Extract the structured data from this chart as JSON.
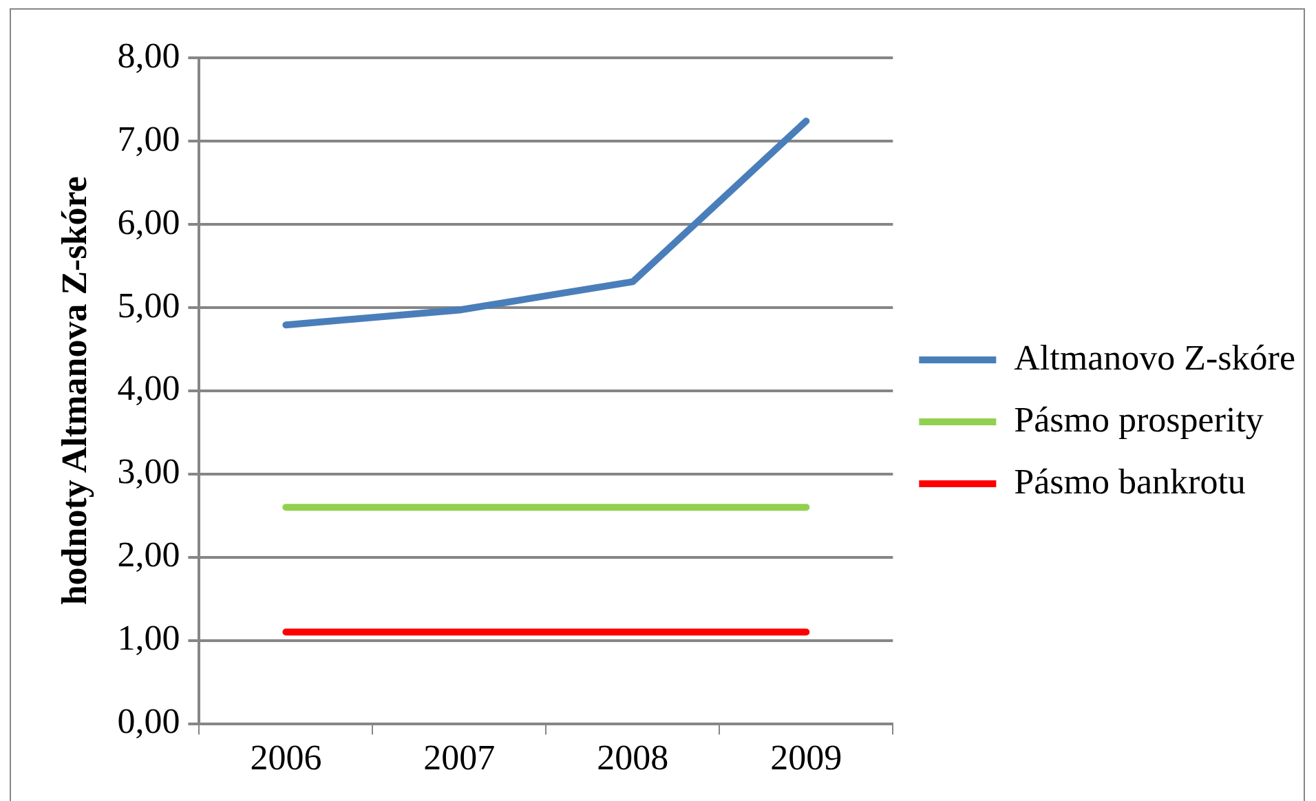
{
  "chart_data": {
    "type": "line",
    "ylabel": "hodnoty Altmanova Z-skóre",
    "categories": [
      "2006",
      "2007",
      "2008",
      "2009"
    ],
    "series": [
      {
        "name": "Altmanovo Z-skóre",
        "color": "#4a7ebb",
        "values": [
          4.79,
          4.97,
          5.31,
          7.24
        ]
      },
      {
        "name": "Pásmo prosperity",
        "color": "#92d050",
        "values": [
          2.6,
          2.6,
          2.6,
          2.6
        ]
      },
      {
        "name": "Pásmo bankrotu",
        "color": "#ff0000",
        "values": [
          1.1,
          1.1,
          1.1,
          1.1
        ]
      }
    ],
    "ylim": [
      0,
      8
    ],
    "yticks": [
      {
        "value": 0,
        "label": "0,00"
      },
      {
        "value": 1,
        "label": "1,00"
      },
      {
        "value": 2,
        "label": "2,00"
      },
      {
        "value": 3,
        "label": "3,00"
      },
      {
        "value": 4,
        "label": "4,00"
      },
      {
        "value": 5,
        "label": "5,00"
      },
      {
        "value": 6,
        "label": "6,00"
      },
      {
        "value": 7,
        "label": "7,00"
      },
      {
        "value": 8,
        "label": "8,00"
      }
    ],
    "grid": "y",
    "legend": "right",
    "marker": "none",
    "line_style": "solid"
  }
}
